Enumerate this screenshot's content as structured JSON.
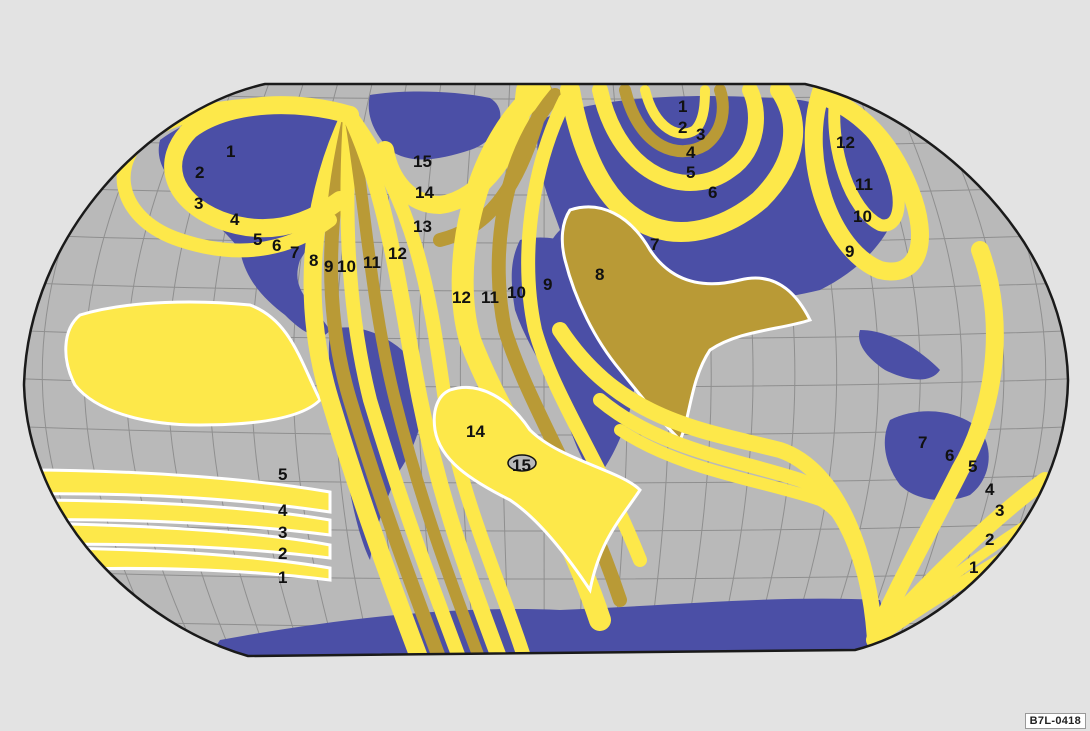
{
  "map": {
    "ocean_color": "#b9b9b9",
    "land_color": "#4b4fa6",
    "zone_yellow": "#fde84a",
    "zone_olive": "#b99a36",
    "labels": [
      {
        "id": "a1",
        "text": "1"
      },
      {
        "id": "a2",
        "text": "2"
      },
      {
        "id": "a3",
        "text": "3"
      },
      {
        "id": "a4",
        "text": "4"
      },
      {
        "id": "a5",
        "text": "5"
      },
      {
        "id": "a6",
        "text": "6"
      },
      {
        "id": "a7",
        "text": "7"
      },
      {
        "id": "a8",
        "text": "8"
      },
      {
        "id": "a9",
        "text": "9"
      },
      {
        "id": "a10",
        "text": "10"
      },
      {
        "id": "a11",
        "text": "11"
      },
      {
        "id": "a12",
        "text": "12"
      },
      {
        "id": "n13",
        "text": "13"
      },
      {
        "id": "n14",
        "text": "14"
      },
      {
        "id": "n15",
        "text": "15"
      },
      {
        "id": "e1",
        "text": "1"
      },
      {
        "id": "e2",
        "text": "2"
      },
      {
        "id": "e3",
        "text": "3"
      },
      {
        "id": "e4",
        "text": "4"
      },
      {
        "id": "e5",
        "text": "5"
      },
      {
        "id": "e6",
        "text": "6"
      },
      {
        "id": "e7",
        "text": "7"
      },
      {
        "id": "e8",
        "text": "8"
      },
      {
        "id": "e9",
        "text": "9"
      },
      {
        "id": "e10",
        "text": "10"
      },
      {
        "id": "e11",
        "text": "11"
      },
      {
        "id": "e12",
        "text": "12"
      },
      {
        "id": "b12",
        "text": "12"
      },
      {
        "id": "b11",
        "text": "11"
      },
      {
        "id": "b10",
        "text": "10"
      },
      {
        "id": "b9",
        "text": "9"
      },
      {
        "id": "s14",
        "text": "14"
      },
      {
        "id": "s15",
        "text": "15"
      },
      {
        "id": "p5",
        "text": "5"
      },
      {
        "id": "p4",
        "text": "4"
      },
      {
        "id": "p3",
        "text": "3"
      },
      {
        "id": "p2",
        "text": "2"
      },
      {
        "id": "p1",
        "text": "1"
      },
      {
        "id": "o7",
        "text": "7"
      },
      {
        "id": "o6",
        "text": "6"
      },
      {
        "id": "o5",
        "text": "5"
      },
      {
        "id": "o4",
        "text": "4"
      },
      {
        "id": "o3",
        "text": "3"
      },
      {
        "id": "o2",
        "text": "2"
      },
      {
        "id": "o1",
        "text": "1"
      }
    ]
  },
  "reference_code": "B7L-0418"
}
